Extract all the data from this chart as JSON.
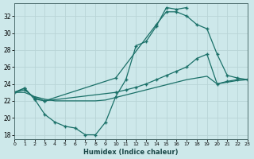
{
  "bg_color": "#cde8ea",
  "grid_color": "#b8d4d6",
  "line_color": "#1a7068",
  "xlabel": "Humidex (Indice chaleur)",
  "xlim": [
    0,
    23
  ],
  "ylim": [
    17.5,
    33.5
  ],
  "yticks": [
    18,
    20,
    22,
    24,
    26,
    28,
    30,
    32
  ],
  "xticks": [
    0,
    1,
    2,
    3,
    4,
    5,
    6,
    7,
    8,
    9,
    10,
    11,
    12,
    13,
    14,
    15,
    16,
    17,
    18,
    19,
    20,
    21,
    22,
    23
  ],
  "line1_x": [
    0,
    1,
    2,
    3,
    4,
    5,
    6,
    7,
    8,
    9,
    10,
    11,
    12,
    13,
    14,
    15,
    16,
    17
  ],
  "line1_y": [
    23.0,
    23.5,
    22.2,
    20.4,
    19.5,
    19.0,
    18.8,
    18.0,
    18.0,
    19.5,
    22.5,
    24.5,
    28.5,
    29.0,
    30.8,
    33.0,
    32.8,
    33.0
  ],
  "line2_x": [
    0,
    1,
    2,
    3,
    10,
    14,
    15,
    16,
    17,
    18,
    19,
    20,
    21,
    22,
    23
  ],
  "line2_y": [
    23.0,
    23.5,
    22.2,
    22.0,
    24.7,
    31.0,
    32.5,
    32.5,
    32.0,
    31.0,
    30.5,
    27.5,
    25.0,
    24.7,
    24.5
  ],
  "line3_x": [
    0,
    1,
    2,
    3,
    10,
    11,
    12,
    13,
    14,
    15,
    16,
    17,
    18,
    19,
    20,
    21,
    22,
    23
  ],
  "line3_y": [
    23.0,
    23.3,
    22.4,
    22.0,
    23.0,
    23.3,
    23.6,
    24.0,
    24.5,
    25.0,
    25.5,
    26.0,
    27.0,
    27.5,
    24.0,
    24.3,
    24.5,
    24.5
  ],
  "line4_x": [
    0,
    1,
    2,
    3,
    4,
    5,
    6,
    7,
    8,
    9,
    10,
    11,
    12,
    13,
    14,
    15,
    16,
    17,
    18,
    19,
    20,
    21,
    22,
    23
  ],
  "line4_y": [
    23.0,
    23.0,
    22.5,
    22.2,
    22.0,
    22.0,
    22.0,
    22.0,
    22.0,
    22.1,
    22.4,
    22.7,
    23.0,
    23.3,
    23.6,
    23.9,
    24.2,
    24.5,
    24.7,
    24.9,
    24.0,
    24.2,
    24.4,
    24.5
  ]
}
